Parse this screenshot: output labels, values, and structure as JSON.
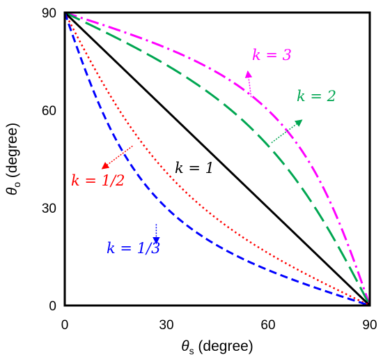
{
  "chart_data": {
    "type": "line",
    "xlabel_symbol": "θ",
    "xlabel_sub": "s",
    "xlabel_unit": " (degree)",
    "ylabel_symbol": "θ",
    "ylabel_sub": "o",
    "ylabel_unit": " (degree)",
    "xlim": [
      0,
      90
    ],
    "ylim": [
      0,
      90
    ],
    "x_ticks": [
      0,
      30,
      60,
      90
    ],
    "y_ticks": [
      0,
      30,
      60,
      90
    ],
    "x_tick_labels": [
      "0",
      "30",
      "60",
      "90"
    ],
    "y_tick_labels": [
      "0",
      "30",
      "60",
      "90"
    ],
    "grid": false,
    "series": [
      {
        "name": "k = 3",
        "k": 3,
        "color": "#ff00ff",
        "dash": "dashdot"
      },
      {
        "name": "k = 2",
        "k": 2,
        "color": "#00a651",
        "dash": "longdash"
      },
      {
        "name": "k = 1",
        "k": 1,
        "color": "#000000",
        "dash": "solid"
      },
      {
        "name": "k = 1/2",
        "k": 0.5,
        "color": "#ff0000",
        "dash": "dotted"
      },
      {
        "name": "k = 1/3",
        "k": 0.3333,
        "color": "#0000ff",
        "dash": "dashed"
      }
    ],
    "annotations": [
      {
        "text": "k = 3",
        "color": "#ff00ff",
        "arrow": true,
        "arrow_from": [
          55,
          64
        ],
        "arrow_to": [
          54,
          72
        ]
      },
      {
        "text": "k = 2",
        "color": "#00a651",
        "arrow": true,
        "arrow_from": [
          61,
          50
        ],
        "arrow_to": [
          70,
          57
        ]
      },
      {
        "text": "k = 1",
        "color": "#000000",
        "arrow": false
      },
      {
        "text": "k = 1/2",
        "color": "#ff0000",
        "arrow": true,
        "arrow_from": [
          20,
          49
        ],
        "arrow_to": [
          11,
          42
        ]
      },
      {
        "text": "k = 1/3",
        "color": "#0000ff",
        "arrow": true,
        "arrow_from": [
          27,
          25
        ],
        "arrow_to": [
          27,
          19
        ]
      }
    ]
  }
}
